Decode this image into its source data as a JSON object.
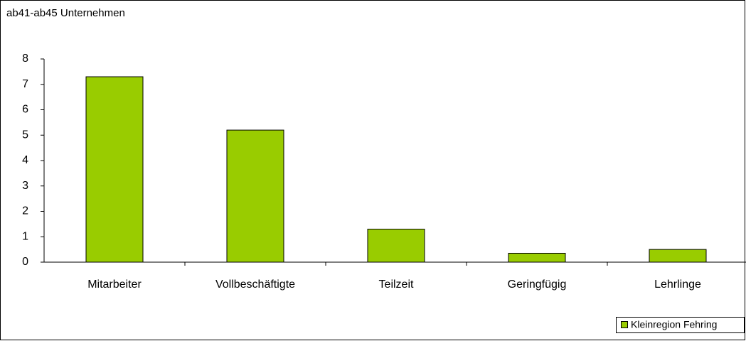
{
  "chart_data": {
    "type": "bar",
    "title": "ab41-ab45 Unternehmen",
    "categories": [
      "Mitarbeiter",
      "Vollbeschäftigte",
      "Teilzeit",
      "Geringfügig",
      "Lehrlinge"
    ],
    "series": [
      {
        "name": "Kleinregion Fehring",
        "color": "#99cc00",
        "values": [
          7.3,
          5.2,
          1.3,
          0.35,
          0.5
        ]
      }
    ],
    "ylim": [
      0,
      8
    ],
    "yticks": [
      0,
      1,
      2,
      3,
      4,
      5,
      6,
      7,
      8
    ],
    "grid": false
  }
}
